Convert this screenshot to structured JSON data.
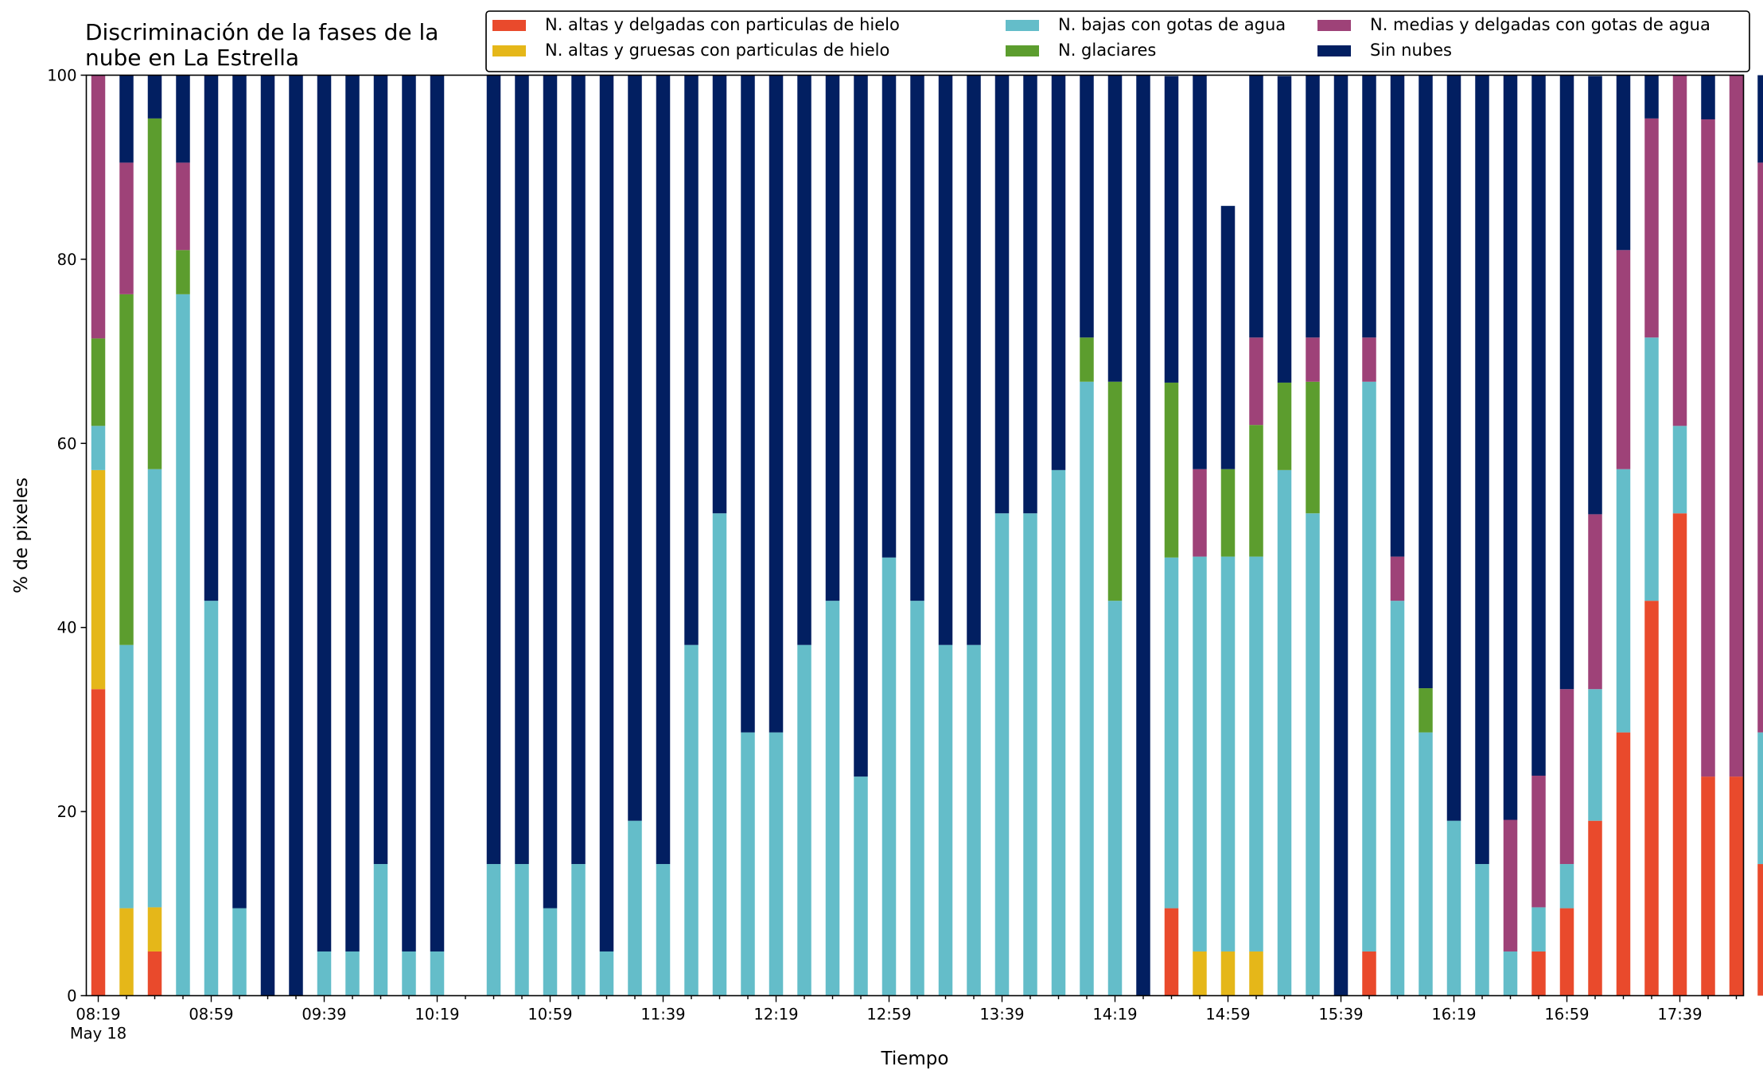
{
  "chart_data": {
    "type": "bar",
    "stacked": true,
    "title_lines": [
      "Discriminación de la fases de la",
      "nube en La Estrella"
    ],
    "xlabel": "Tiempo",
    "ylabel": "% de pixeles",
    "ylim": [
      0,
      100
    ],
    "yticks": [
      "0",
      "20",
      "40",
      "60",
      "80",
      "100"
    ],
    "grid": false,
    "legend_position": "top-right",
    "x_tick_labels": [
      "08:19",
      "08:59",
      "09:39",
      "10:19",
      "10:59",
      "11:39",
      "12:19",
      "12:59",
      "13:39",
      "14:19",
      "14:59",
      "15:39",
      "16:19",
      "16:59",
      "17:39"
    ],
    "x_date_label": "May 18",
    "x_start_time": "08:19",
    "x_interval_minutes": 10,
    "series": [
      {
        "name": "N. altas y delgadas con particulas de hielo",
        "color": "#e94a2c",
        "values": [
          33.3,
          0,
          4.8,
          0,
          0,
          0,
          0,
          0,
          0,
          0,
          0,
          0,
          0,
          0,
          0,
          0,
          0,
          0,
          0,
          0,
          0,
          0,
          0,
          0,
          0,
          0,
          0,
          0,
          0,
          0,
          0,
          0,
          0,
          0,
          0,
          0,
          0,
          0,
          9.5,
          0,
          0,
          0,
          0,
          0,
          0,
          4.8,
          0,
          0,
          0,
          0,
          0,
          4.8,
          9.5,
          19,
          28.6,
          42.9,
          52.4,
          23.8,
          23.8,
          14.3
        ]
      },
      {
        "name": "N. altas y gruesas con particulas de hielo",
        "color": "#e5b719",
        "values": [
          23.8,
          9.5,
          4.8,
          0,
          0,
          0,
          0,
          0,
          0,
          0,
          0,
          0,
          0,
          0,
          0,
          0,
          0,
          0,
          0,
          0,
          0,
          0,
          0,
          0,
          0,
          0,
          0,
          0,
          0,
          0,
          0,
          0,
          0,
          0,
          0,
          0,
          0,
          0,
          0,
          4.8,
          4.8,
          4.8,
          0,
          0,
          0,
          0,
          0,
          0,
          0,
          0,
          0,
          0,
          0,
          0,
          0,
          0,
          0,
          0,
          0,
          0
        ]
      },
      {
        "name": "N. bajas con gotas de agua",
        "color": "#64bdc9",
        "values": [
          4.8,
          28.6,
          47.6,
          76.2,
          42.9,
          9.5,
          0,
          0,
          4.8,
          4.8,
          14.3,
          4.8,
          4.8,
          0,
          14.3,
          14.3,
          9.5,
          14.3,
          4.8,
          19,
          14.3,
          38.1,
          52.4,
          28.6,
          28.6,
          38.1,
          42.9,
          23.8,
          47.6,
          42.9,
          38.1,
          38.1,
          52.4,
          52.4,
          57.1,
          66.7,
          42.9,
          0,
          38.1,
          42.9,
          42.9,
          42.9,
          57.1,
          52.4,
          0,
          61.9,
          42.9,
          28.6,
          19,
          14.3,
          4.8,
          4.8,
          4.8,
          14.3,
          28.6,
          28.6,
          9.5,
          0,
          0,
          14.3
        ]
      },
      {
        "name": "N. glaciares",
        "color": "#5c9d2e",
        "values": [
          9.5,
          38.1,
          38.1,
          4.8,
          0,
          0,
          0,
          0,
          0,
          0,
          0,
          0,
          0,
          0,
          0,
          0,
          0,
          0,
          0,
          0,
          0,
          0,
          0,
          0,
          0,
          0,
          0,
          0,
          0,
          0,
          0,
          0,
          0,
          0,
          0,
          4.8,
          23.8,
          0,
          19,
          0,
          9.5,
          14.3,
          9.5,
          14.3,
          0,
          0,
          0,
          4.8,
          0,
          0,
          0,
          0,
          0,
          0,
          0,
          0,
          0,
          0,
          0,
          0
        ]
      },
      {
        "name": "N. medias y delgadas con gotas de agua",
        "color": "#9e4278",
        "values": [
          28.6,
          14.3,
          0,
          9.5,
          0,
          0,
          0,
          0,
          0,
          0,
          0,
          0,
          0,
          0,
          0,
          0,
          0,
          0,
          0,
          0,
          0,
          0,
          0,
          0,
          0,
          0,
          0,
          0,
          0,
          0,
          0,
          0,
          0,
          0,
          0,
          0,
          0,
          0,
          0,
          9.5,
          0,
          9.5,
          0,
          4.8,
          0,
          4.8,
          4.8,
          0,
          0,
          0,
          14.3,
          14.3,
          19,
          19,
          23.8,
          23.8,
          38.1,
          71.4,
          76.2,
          61.9
        ]
      },
      {
        "name": "Sin nubes",
        "color": "#021f61",
        "values": [
          0,
          9.5,
          4.8,
          9.5,
          57.1,
          90.5,
          100,
          100,
          95.2,
          95.2,
          85.7,
          95.2,
          95.2,
          0,
          85.7,
          85.7,
          90.5,
          85.7,
          95.2,
          81,
          85.7,
          61.9,
          47.6,
          71.4,
          71.4,
          61.9,
          57.1,
          76.2,
          52.4,
          57.1,
          61.9,
          61.9,
          47.6,
          47.6,
          42.9,
          28.6,
          33.3,
          100,
          33.3,
          42.9,
          28.6,
          28.6,
          33.3,
          28.6,
          100,
          28.6,
          52.4,
          66.7,
          81,
          85.7,
          81,
          76.2,
          66.7,
          47.6,
          19,
          4.8,
          0,
          4.8,
          0,
          9.5
        ]
      }
    ]
  }
}
